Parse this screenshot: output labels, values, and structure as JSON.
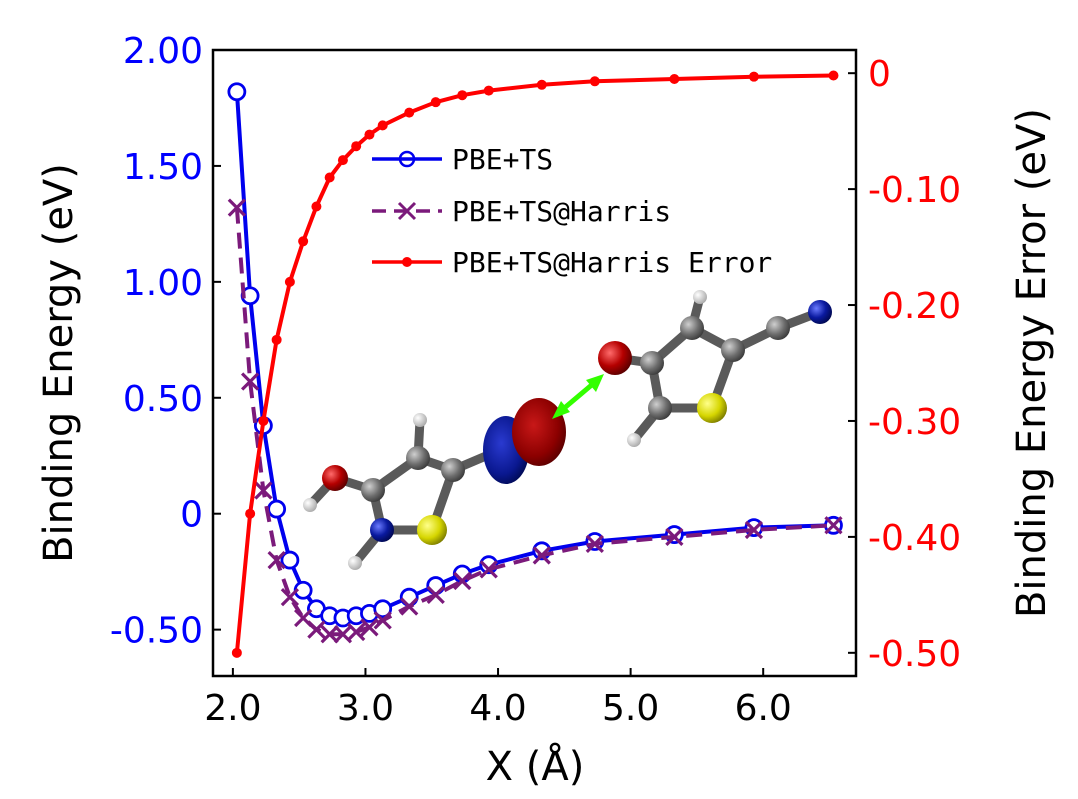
{
  "chart_data": {
    "type": "line",
    "title": "",
    "xlabel": "X (Å)",
    "ylabel_left": "Binding Energy (eV)",
    "ylabel_right": "Binding Energy Error (eV)",
    "xlim": [
      1.85,
      6.7
    ],
    "ylim_left": [
      -0.7,
      2.0
    ],
    "ylim_right": [
      -0.52,
      0.02
    ],
    "x_ticks": [
      2.0,
      3.0,
      4.0,
      5.0,
      6.0
    ],
    "x_tick_labels": [
      "2.0",
      "3.0",
      "4.0",
      "5.0",
      "6.0"
    ],
    "left_ticks": [
      2.0,
      1.5,
      1.0,
      0.5,
      0.0,
      -0.5
    ],
    "left_tick_labels": [
      "2.00",
      "1.50",
      "1.00",
      "0.50",
      "0",
      "-0.50"
    ],
    "right_ticks": [
      0.0,
      -0.1,
      -0.2,
      -0.3,
      -0.4,
      -0.5
    ],
    "right_tick_labels": [
      "0",
      "-0.10",
      "-0.20",
      "-0.30",
      "-0.40",
      "-0.50"
    ],
    "colors": {
      "left_axis": "#0000ff",
      "right_axis": "#ff0000",
      "pbe_ts": "#0000ee",
      "harris": "#7b1a7b",
      "error": "#ff0000",
      "arrow": "#33ff00"
    },
    "legend_position": "upper-center",
    "series": [
      {
        "name": "PBE+TS",
        "axis": "left",
        "style": "solid-open-circle",
        "x": [
          2.03,
          2.13,
          2.23,
          2.33,
          2.43,
          2.53,
          2.63,
          2.73,
          2.83,
          2.93,
          3.03,
          3.13,
          3.33,
          3.53,
          3.73,
          3.93,
          4.33,
          4.73,
          5.33,
          5.93,
          6.53
        ],
        "y": [
          1.82,
          0.94,
          0.38,
          0.02,
          -0.2,
          -0.33,
          -0.41,
          -0.44,
          -0.45,
          -0.44,
          -0.43,
          -0.41,
          -0.36,
          -0.31,
          -0.26,
          -0.22,
          -0.16,
          -0.12,
          -0.09,
          -0.06,
          -0.05
        ]
      },
      {
        "name": "PBE+TS@Harris",
        "axis": "left",
        "style": "dashed-x",
        "x": [
          2.03,
          2.13,
          2.23,
          2.33,
          2.43,
          2.53,
          2.63,
          2.73,
          2.83,
          2.93,
          3.03,
          3.13,
          3.33,
          3.53,
          3.73,
          3.93,
          4.33,
          4.73,
          5.33,
          5.93,
          6.53
        ],
        "y": [
          1.32,
          0.57,
          0.1,
          -0.2,
          -0.36,
          -0.45,
          -0.5,
          -0.52,
          -0.52,
          -0.51,
          -0.49,
          -0.46,
          -0.4,
          -0.35,
          -0.29,
          -0.24,
          -0.18,
          -0.13,
          -0.1,
          -0.07,
          -0.05
        ]
      },
      {
        "name": "PBE+TS@Harris Error",
        "axis": "right",
        "style": "solid-dot",
        "x": [
          2.03,
          2.13,
          2.23,
          2.33,
          2.43,
          2.53,
          2.63,
          2.73,
          2.83,
          2.93,
          3.03,
          3.13,
          3.33,
          3.53,
          3.73,
          3.93,
          4.33,
          4.73,
          5.33,
          5.93,
          6.53
        ],
        "y": [
          -0.5,
          -0.38,
          -0.3,
          -0.23,
          -0.18,
          -0.145,
          -0.115,
          -0.09,
          -0.075,
          -0.063,
          -0.053,
          -0.045,
          -0.034,
          -0.025,
          -0.019,
          -0.015,
          -0.01,
          -0.007,
          -0.005,
          -0.003,
          -0.002
        ]
      }
    ]
  }
}
